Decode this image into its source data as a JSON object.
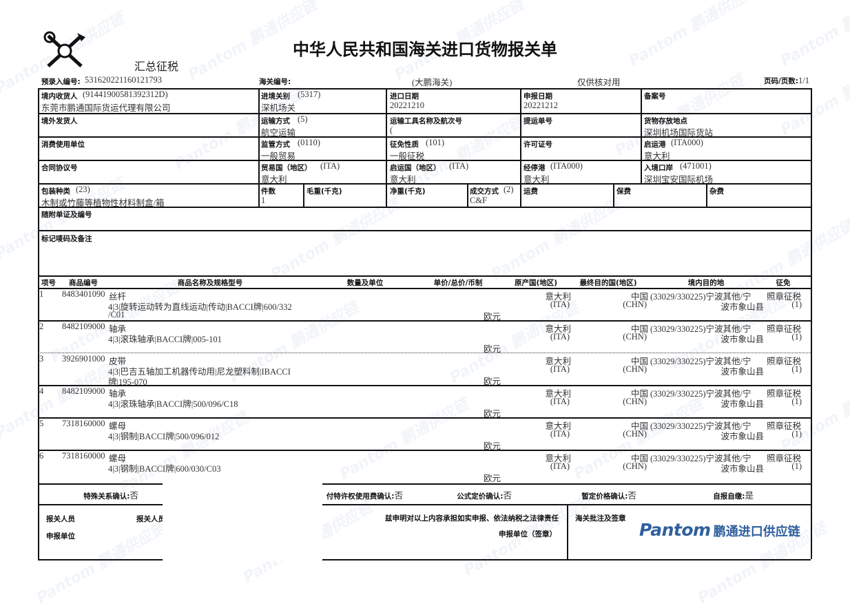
{
  "header": {
    "title": "中华人民共和国海关进口货物报关单",
    "summary_tax": "汇总征税",
    "pre_entry_label": "预录入编号:",
    "pre_entry_no": "531620221160121793",
    "customs_no_label": "海关编号:",
    "customs_office": "(大鹏海关)",
    "note": "仅供核对用",
    "page_label": "页码/页数:",
    "page_value": "1/1"
  },
  "fields": {
    "consignee_label": "境内收货人",
    "consignee_code": "(91441900581392312D)",
    "consignee": "东莞市鹏通国际货运代理有限公司",
    "entry_customs_label": "进境关别",
    "entry_customs_code": "(5317)",
    "entry_customs": "深机场关",
    "import_date_label": "进口日期",
    "import_date": "20221210",
    "declare_date_label": "申报日期",
    "declare_date": "20221212",
    "record_no_label": "备案号",
    "shipper_label": "境外发货人",
    "transport_mode_label": "运输方式",
    "transport_mode_code": "(5)",
    "transport_mode": "航空运输",
    "vessel_label": "运输工具名称及航次号",
    "vessel": "(",
    "bl_no_label": "提运单号",
    "storage_label": "货物存放地点",
    "storage": "深圳机场国际货站",
    "consumer_label": "消费使用单位",
    "supervision_label": "监管方式",
    "supervision_code": "(0110)",
    "supervision": "一般贸易",
    "levy_label": "征免性质",
    "levy_code": "(101)",
    "levy": "一般征税",
    "license_label": "许可证号",
    "depart_port_label": "启运港",
    "depart_port_code": "(ITA000)",
    "depart_port": "意大利",
    "contract_label": "合同协议号",
    "trade_country_label": "贸易国（地区）",
    "trade_country_code": "(ITA)",
    "trade_country": "意大利",
    "origin_country_label": "启运国（地区）",
    "origin_country_code": "(ITA)",
    "origin_country": "意大利",
    "via_port_label": "经停港",
    "via_port_code": "(ITA000)",
    "via_port": "意大利",
    "entry_port_label": "入境口岸",
    "entry_port_code": "(471001)",
    "entry_port": "深圳宝安国际机场",
    "package_label": "包装种类",
    "package_code": "(23)",
    "package": "木制或竹藤等植物性材料制盒/箱",
    "pieces_label": "件数",
    "pieces": "1",
    "gross_label": "毛重(千克)",
    "net_label": "净重(千克)",
    "deal_label": "成交方式",
    "deal_code": "(2)",
    "deal": "C&F",
    "freight_label": "运费",
    "insurance_label": "保费",
    "misc_label": "杂费",
    "docs_label": "随附单证及编号",
    "marks_label": "标记唛码及备注"
  },
  "items_header": [
    "项号",
    "商品编号",
    "商品名称及规格型号",
    "数量及单位",
    "单价/总价/币制",
    "原产国(地区)",
    "最终目的国(地区)",
    "境内目的地",
    "征免"
  ],
  "items": [
    {
      "no": "1",
      "code": "8483401090",
      "name": "丝杆",
      "spec": "4|3|旋转运动转为直线运动|传动|BACCI牌|600/332",
      "spec2": "/C01",
      "currency": "欧元",
      "origin": "意大利",
      "origin_code": "(ITA)",
      "dest": "中国",
      "dest_code": "(CHN)",
      "domestic": "(33029/330225)宁波其他/宁",
      "domestic2": "波市象山县",
      "levy": "照章征税",
      "levy_code": "(1)"
    },
    {
      "no": "2",
      "code": "8482109000",
      "name": "轴承",
      "spec": "4|3|滚珠轴承|BACCI牌|005-101",
      "spec2": "",
      "currency": "欧元",
      "origin": "意大利",
      "origin_code": "(ITA)",
      "dest": "中国",
      "dest_code": "(CHN)",
      "domestic": "(33029/330225)宁波其他/宁",
      "domestic2": "波市象山县",
      "levy": "照章征税",
      "levy_code": "(1)"
    },
    {
      "no": "3",
      "code": "3926901000",
      "name": "皮带",
      "spec": "4|3|巴吉五轴加工机器传动用|尼龙塑料制|IBACCI",
      "spec2": "牌|195-070",
      "currency": "欧元",
      "origin": "意大利",
      "origin_code": "(ITA)",
      "dest": "中国",
      "dest_code": "(CHN)",
      "domestic": "(33029/330225)宁波其他/宁",
      "domestic2": "波市象山县",
      "levy": "照章征税",
      "levy_code": "(1)"
    },
    {
      "no": "4",
      "code": "8482109000",
      "name": "轴承",
      "spec": "4|3|滚珠轴承|BACCI牌|500/096/C18",
      "spec2": "",
      "currency": "欧元",
      "origin": "意大利",
      "origin_code": "(ITA)",
      "dest": "中国",
      "dest_code": "(CHN)",
      "domestic": "(33029/330225)宁波其他/宁",
      "domestic2": "波市象山县",
      "levy": "照章征税",
      "levy_code": "(1)"
    },
    {
      "no": "5",
      "code": "7318160000",
      "name": "螺母",
      "spec": "4|3|钢制|BACCI牌|500/096/012",
      "spec2": "",
      "currency": "欧元",
      "origin": "意大利",
      "origin_code": "(ITA)",
      "dest": "中国",
      "dest_code": "(CHN)",
      "domestic": "(33029/330225)宁波其他/宁",
      "domestic2": "波市象山县",
      "levy": "照章征税",
      "levy_code": "(1)"
    },
    {
      "no": "6",
      "code": "7318160000",
      "name": "螺母",
      "spec": "4|3|钢制|BACCI牌|600/030/C03",
      "spec2": "",
      "currency": "欧元",
      "origin": "意大利",
      "origin_code": "(ITA)",
      "dest": "中国",
      "dest_code": "(CHN)",
      "domestic": "(33029/330225)宁波其他/宁",
      "domestic2": "波市象山县",
      "levy": "照章征税",
      "levy_code": "(1)"
    }
  ],
  "confirm": {
    "special_label": "特殊关系确认:",
    "special": "否",
    "royalty_label": "付特许权使用费确认:",
    "royalty": "否",
    "formula_label": "公式定价确认:",
    "formula": "否",
    "provisional_label": "暂定价格确认:",
    "provisional": "否",
    "self_label": "自报自缴:",
    "self": "是"
  },
  "footer": {
    "declarant_label": "报关人员",
    "declarant2_label": "报关人员",
    "unit_label": "申报单位",
    "statement": "兹申明对以上内容承担如实申报、依法纳税之法律责任",
    "seal_label": "申报单位（签章）",
    "customs_note_label": "海关批注及签章",
    "logo_brand": "Pantom",
    "logo_cn": "鹏通进口供应链"
  },
  "watermark": "Pantom 鹏通供应链",
  "colors": {
    "brand": "#2f5f9e",
    "line": "#111111"
  }
}
